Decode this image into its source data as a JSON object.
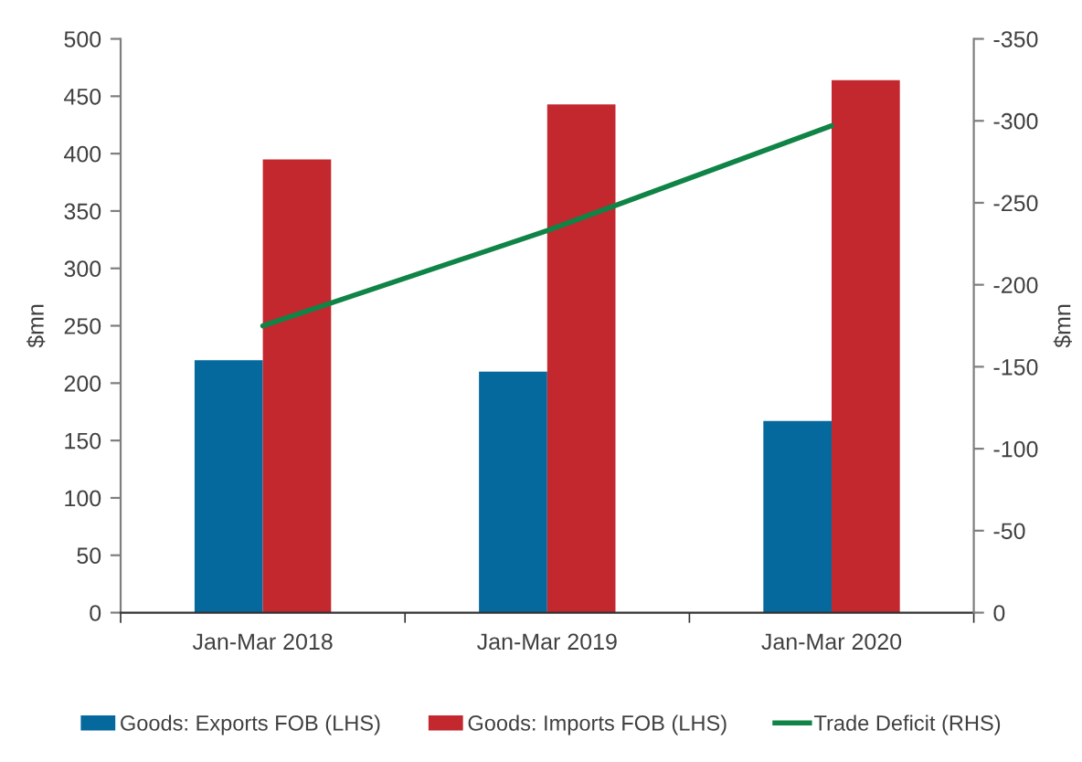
{
  "chart_data": {
    "type": "bar",
    "categories": [
      "Jan-Mar 2018",
      "Jan-Mar 2019",
      "Jan-Mar 2020"
    ],
    "series": [
      {
        "name": "Goods: Exports FOB (LHS)",
        "color": "#05699d",
        "values": [
          220,
          210,
          167
        ]
      },
      {
        "name": "Goods: Imports FOB (LHS)",
        "color": "#c3282f",
        "values": [
          395,
          443,
          464
        ]
      },
      {
        "name": "Trade Deficit (RHS)",
        "type": "line",
        "axis": "y2",
        "color": "#0f8446",
        "values": [
          -175,
          -233,
          -297
        ]
      }
    ],
    "ylabel": "$mn",
    "y2label": "$mn",
    "ylim": [
      0,
      500
    ],
    "yticks": [
      0,
      50,
      100,
      150,
      200,
      250,
      300,
      350,
      400,
      450,
      500
    ],
    "y2lim": [
      0,
      -350
    ],
    "y2ticks": [
      0,
      -50,
      -100,
      -150,
      -200,
      -250,
      -300,
      -350
    ],
    "legend": "bottom"
  }
}
